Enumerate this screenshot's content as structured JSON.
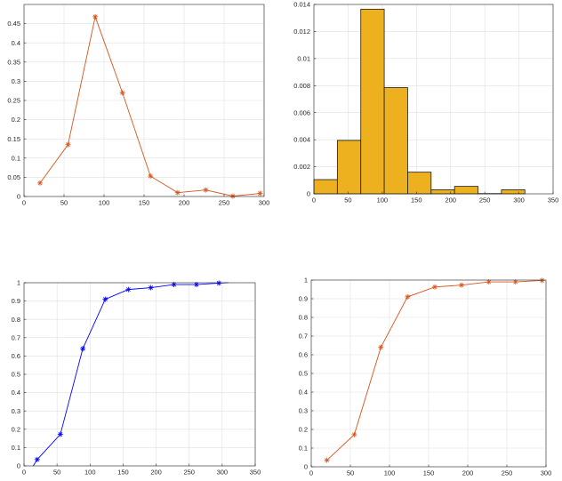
{
  "chart_data": [
    {
      "type": "line",
      "title": "",
      "xlabel": "",
      "ylabel": "",
      "xlim": [
        0,
        300
      ],
      "ylim": [
        0,
        0.5
      ],
      "xticks": [
        0,
        50,
        100,
        150,
        200,
        250,
        300
      ],
      "yticks": [
        0,
        0.05,
        0.1,
        0.15,
        0.2,
        0.25,
        0.3,
        0.35,
        0.4,
        0.45
      ],
      "grid": true,
      "series": [
        {
          "color": "#d95319",
          "marker": "*",
          "x": [
            20,
            55,
            89,
            123,
            158,
            192,
            227,
            261,
            295
          ],
          "y": [
            0.035,
            0.135,
            0.468,
            0.27,
            0.053,
            0.01,
            0.017,
            0.001,
            0.008
          ]
        }
      ]
    },
    {
      "type": "bar",
      "title": "",
      "xlabel": "",
      "ylabel": "",
      "xlim": [
        0,
        350
      ],
      "ylim": [
        0,
        0.014
      ],
      "xticks": [
        0,
        50,
        100,
        150,
        200,
        250,
        300,
        350
      ],
      "yticks": [
        0,
        0.002,
        0.004,
        0.006,
        0.008,
        0.01,
        0.012,
        0.014
      ],
      "grid": true,
      "bar_color": "#edb120",
      "bin_edges": [
        0,
        34.3,
        68.6,
        102.9,
        137.2,
        171.5,
        205.8,
        240.1,
        274.4,
        308.7
      ],
      "values": [
        0.00105,
        0.00395,
        0.01365,
        0.00785,
        0.0016,
        0.0003,
        0.00055,
        2e-05,
        0.0003
      ]
    },
    {
      "type": "line",
      "title": "",
      "xlabel": "",
      "ylabel": "",
      "xlim": [
        0,
        350
      ],
      "ylim": [
        0,
        1
      ],
      "xticks": [
        0,
        50,
        100,
        150,
        200,
        250,
        300,
        350
      ],
      "yticks": [
        0,
        0.1,
        0.2,
        0.3,
        0.4,
        0.5,
        0.6,
        0.7,
        0.8,
        0.9,
        1
      ],
      "grid": true,
      "series": [
        {
          "color": "#0000ff",
          "marker": "*",
          "x": [
            14,
            20,
            55,
            89,
            123,
            158,
            192,
            227,
            261,
            295,
            309
          ],
          "y": [
            0,
            0.035,
            0.172,
            0.64,
            0.91,
            0.963,
            0.973,
            0.99,
            0.99,
            0.998,
            1.0
          ],
          "marked": [
            false,
            true,
            true,
            true,
            true,
            true,
            true,
            true,
            true,
            true,
            false
          ]
        }
      ]
    },
    {
      "type": "line",
      "title": "",
      "xlabel": "",
      "ylabel": "",
      "xlim": [
        0,
        300
      ],
      "ylim": [
        0,
        1
      ],
      "xticks": [
        0,
        50,
        100,
        150,
        200,
        250,
        300
      ],
      "yticks": [
        0,
        0.1,
        0.2,
        0.3,
        0.4,
        0.5,
        0.6,
        0.7,
        0.8,
        0.9,
        1
      ],
      "grid": true,
      "series": [
        {
          "color": "#d95319",
          "marker": "*",
          "x": [
            20,
            55,
            89,
            123,
            158,
            192,
            227,
            261,
            295
          ],
          "y": [
            0.035,
            0.172,
            0.64,
            0.91,
            0.963,
            0.973,
            0.99,
            0.99,
            0.998
          ]
        }
      ]
    }
  ]
}
